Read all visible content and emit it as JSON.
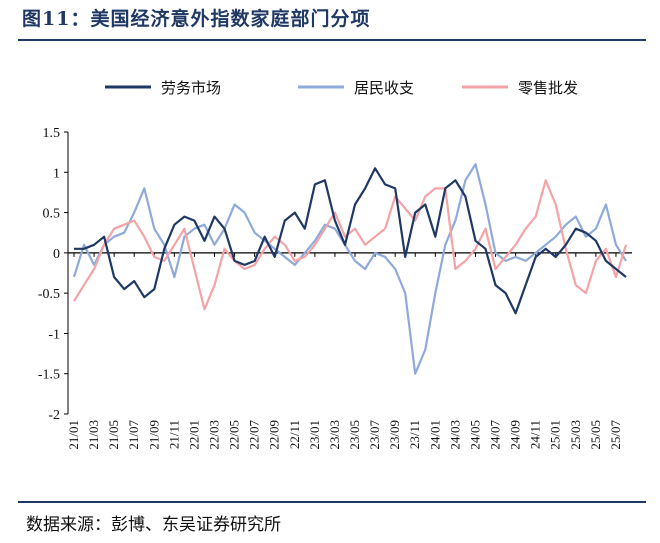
{
  "header": {
    "figure_title": "图11：美国经济意外指数家庭部门分项"
  },
  "footer": {
    "source": "数据来源：彭博、东吴证券研究所"
  },
  "colors": {
    "labor": "#1f3864",
    "resident_income": "#8eaadb",
    "retail_wholesale": "#f4a3a6",
    "title": "#1f3864"
  },
  "chart_data": {
    "type": "line",
    "title": "",
    "xlabel": "",
    "ylabel": "",
    "ylim": [
      -2,
      1.5
    ],
    "y_ticks": [
      "1.5",
      "1",
      "0.5",
      "0",
      "-0.5",
      "-1",
      "-1.5",
      "-2"
    ],
    "x_tick_labels": [
      "21/01",
      "21/03",
      "21/05",
      "21/07",
      "21/09",
      "21/11",
      "22/01",
      "22/03",
      "22/05",
      "22/07",
      "22/09",
      "22/11",
      "23/01",
      "23/03",
      "23/05",
      "23/07",
      "23/09",
      "23/11",
      "24/01",
      "24/03",
      "24/05",
      "24/07",
      "24/09",
      "24/11",
      "25/01",
      "25/03",
      "25/05",
      "25/07"
    ],
    "x": [
      "21/01",
      "21/02",
      "21/03",
      "21/04",
      "21/05",
      "21/06",
      "21/07",
      "21/08",
      "21/09",
      "21/10",
      "21/11",
      "21/12",
      "22/01",
      "22/02",
      "22/03",
      "22/04",
      "22/05",
      "22/06",
      "22/07",
      "22/08",
      "22/09",
      "22/10",
      "22/11",
      "22/12",
      "23/01",
      "23/02",
      "23/03",
      "23/04",
      "23/05",
      "23/06",
      "23/07",
      "23/08",
      "23/09",
      "23/10",
      "23/11",
      "23/12",
      "24/01",
      "24/02",
      "24/03",
      "24/04",
      "24/05",
      "24/06",
      "24/07",
      "24/08",
      "24/09",
      "24/10",
      "24/11",
      "24/12",
      "25/01",
      "25/02",
      "25/03",
      "25/04",
      "25/05",
      "25/06",
      "25/07",
      "25/08"
    ],
    "legend_position": "top",
    "grid": false,
    "series": [
      {
        "name": "劳务市场",
        "values": [
          0.05,
          0.05,
          0.1,
          0.2,
          -0.3,
          -0.45,
          -0.35,
          -0.55,
          -0.45,
          0.05,
          0.35,
          0.45,
          0.4,
          0.15,
          0.45,
          0.3,
          -0.1,
          -0.15,
          -0.1,
          0.2,
          -0.05,
          0.4,
          0.5,
          0.3,
          0.85,
          0.9,
          0.4,
          0.1,
          0.6,
          0.8,
          1.05,
          0.85,
          0.8,
          -0.05,
          0.5,
          0.6,
          0.2,
          0.8,
          0.9,
          0.7,
          0.15,
          0.05,
          -0.4,
          -0.5,
          -0.75,
          -0.4,
          -0.05,
          0.05,
          -0.05,
          0.1,
          0.3,
          0.25,
          0.15,
          -0.1,
          -0.2,
          -0.3
        ]
      },
      {
        "name": "居民收支",
        "values": [
          -0.3,
          0.1,
          -0.15,
          0.1,
          0.2,
          0.25,
          0.5,
          0.8,
          0.3,
          0.1,
          -0.3,
          0.2,
          0.3,
          0.35,
          0.1,
          0.3,
          0.6,
          0.5,
          0.25,
          0.15,
          0.05,
          -0.05,
          -0.15,
          0.0,
          0.15,
          0.35,
          0.3,
          0.1,
          -0.1,
          -0.2,
          0.0,
          -0.05,
          -0.2,
          -0.5,
          -1.5,
          -1.2,
          -0.5,
          0.1,
          0.4,
          0.9,
          1.1,
          0.6,
          0.0,
          -0.1,
          -0.05,
          -0.1,
          0.0,
          0.1,
          0.2,
          0.35,
          0.45,
          0.2,
          0.3,
          0.6,
          0.1,
          -0.1
        ]
      },
      {
        "name": "零售批发",
        "values": [
          -0.6,
          -0.4,
          -0.2,
          0.1,
          0.3,
          0.35,
          0.4,
          0.2,
          -0.05,
          -0.1,
          0.1,
          0.3,
          -0.2,
          -0.7,
          -0.4,
          0.05,
          -0.1,
          -0.2,
          -0.15,
          0.05,
          0.2,
          0.1,
          -0.1,
          -0.05,
          0.1,
          0.3,
          0.5,
          0.2,
          0.3,
          0.1,
          0.2,
          0.3,
          0.7,
          0.55,
          0.4,
          0.7,
          0.8,
          0.8,
          -0.2,
          -0.1,
          0.05,
          0.3,
          -0.2,
          -0.05,
          0.1,
          0.3,
          0.45,
          0.9,
          0.6,
          0.05,
          -0.4,
          -0.5,
          -0.1,
          0.05,
          -0.3,
          0.1
        ]
      }
    ]
  }
}
